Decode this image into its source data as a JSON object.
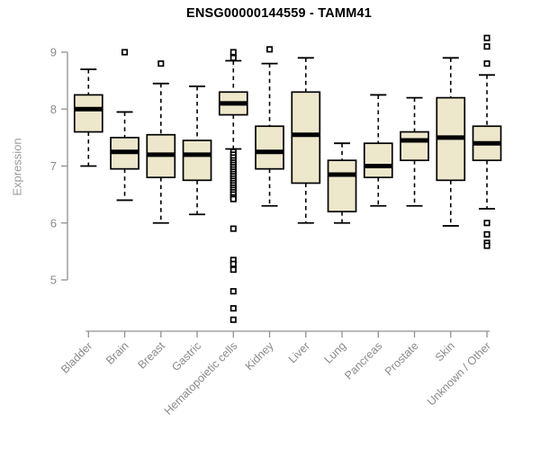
{
  "title": "ENSG00000144559 - TAMM41",
  "colors": {
    "box_fill": "#EDE8CC",
    "box_border": "#000000",
    "median": "#000000",
    "whisker": "#000000",
    "outlier_stroke": "#000000",
    "axis": "#909090",
    "tick_label": "#8a8a8a",
    "category_label": "#8a8a8a",
    "title_color": "#000000",
    "background": "#ffffff"
  },
  "chart_data": {
    "type": "boxplot",
    "title": "ENSG00000144559 - TAMM41",
    "xlabel": "",
    "ylabel": "Expression",
    "ylim": [
      4.2,
      9.4
    ],
    "yticks": [
      5,
      6,
      7,
      8,
      9
    ],
    "grid": false,
    "legend": false,
    "categories": [
      "Bladder",
      "Brain",
      "Breast",
      "Gastric",
      "Hematopoietic cells",
      "Kidney",
      "Liver",
      "Lung",
      "Pancreas",
      "Prostate",
      "Skin",
      "Unknown / Other"
    ],
    "series": [
      {
        "name": "Bladder",
        "whisker_low": 7.0,
        "q1": 7.6,
        "median": 8.0,
        "q3": 8.25,
        "whisker_high": 8.7,
        "outliers": []
      },
      {
        "name": "Brain",
        "whisker_low": 6.4,
        "q1": 6.95,
        "median": 7.25,
        "q3": 7.5,
        "whisker_high": 7.95,
        "outliers": [
          9.0
        ]
      },
      {
        "name": "Breast",
        "whisker_low": 6.0,
        "q1": 6.8,
        "median": 7.2,
        "q3": 7.55,
        "whisker_high": 8.45,
        "outliers": [
          8.8
        ]
      },
      {
        "name": "Gastric",
        "whisker_low": 6.15,
        "q1": 6.75,
        "median": 7.2,
        "q3": 7.45,
        "whisker_high": 8.4,
        "outliers": []
      },
      {
        "name": "Hematopoietic cells",
        "whisker_low": 7.3,
        "q1": 7.9,
        "median": 8.1,
        "q3": 8.3,
        "whisker_high": 8.85,
        "outliers": [
          9.0,
          8.9,
          7.25,
          7.2,
          7.15,
          7.1,
          7.06,
          7.02,
          6.98,
          6.94,
          6.9,
          6.86,
          6.82,
          6.78,
          6.74,
          6.7,
          6.66,
          6.62,
          6.58,
          6.54,
          6.5,
          6.45,
          6.42,
          5.9,
          5.35,
          5.28,
          5.18,
          4.8,
          4.5,
          4.3
        ]
      },
      {
        "name": "Kidney",
        "whisker_low": 6.3,
        "q1": 6.95,
        "median": 7.25,
        "q3": 7.7,
        "whisker_high": 8.8,
        "outliers": [
          9.05
        ]
      },
      {
        "name": "Liver",
        "whisker_low": 6.0,
        "q1": 6.7,
        "median": 7.55,
        "q3": 8.3,
        "whisker_high": 8.9,
        "outliers": []
      },
      {
        "name": "Lung",
        "whisker_low": 6.0,
        "q1": 6.2,
        "median": 6.85,
        "q3": 7.1,
        "whisker_high": 7.4,
        "outliers": []
      },
      {
        "name": "Pancreas",
        "whisker_low": 6.3,
        "q1": 6.8,
        "median": 7.0,
        "q3": 7.4,
        "whisker_high": 8.25,
        "outliers": []
      },
      {
        "name": "Prostate",
        "whisker_low": 6.3,
        "q1": 7.1,
        "median": 7.45,
        "q3": 7.6,
        "whisker_high": 8.2,
        "outliers": []
      },
      {
        "name": "Skin",
        "whisker_low": 5.95,
        "q1": 6.75,
        "median": 7.5,
        "q3": 8.2,
        "whisker_high": 8.9,
        "outliers": []
      },
      {
        "name": "Unknown / Other",
        "whisker_low": 6.25,
        "q1": 7.1,
        "median": 7.4,
        "q3": 7.7,
        "whisker_high": 8.6,
        "outliers": [
          9.25,
          9.1,
          8.8,
          6.0,
          5.8,
          5.65,
          5.6
        ]
      }
    ]
  }
}
